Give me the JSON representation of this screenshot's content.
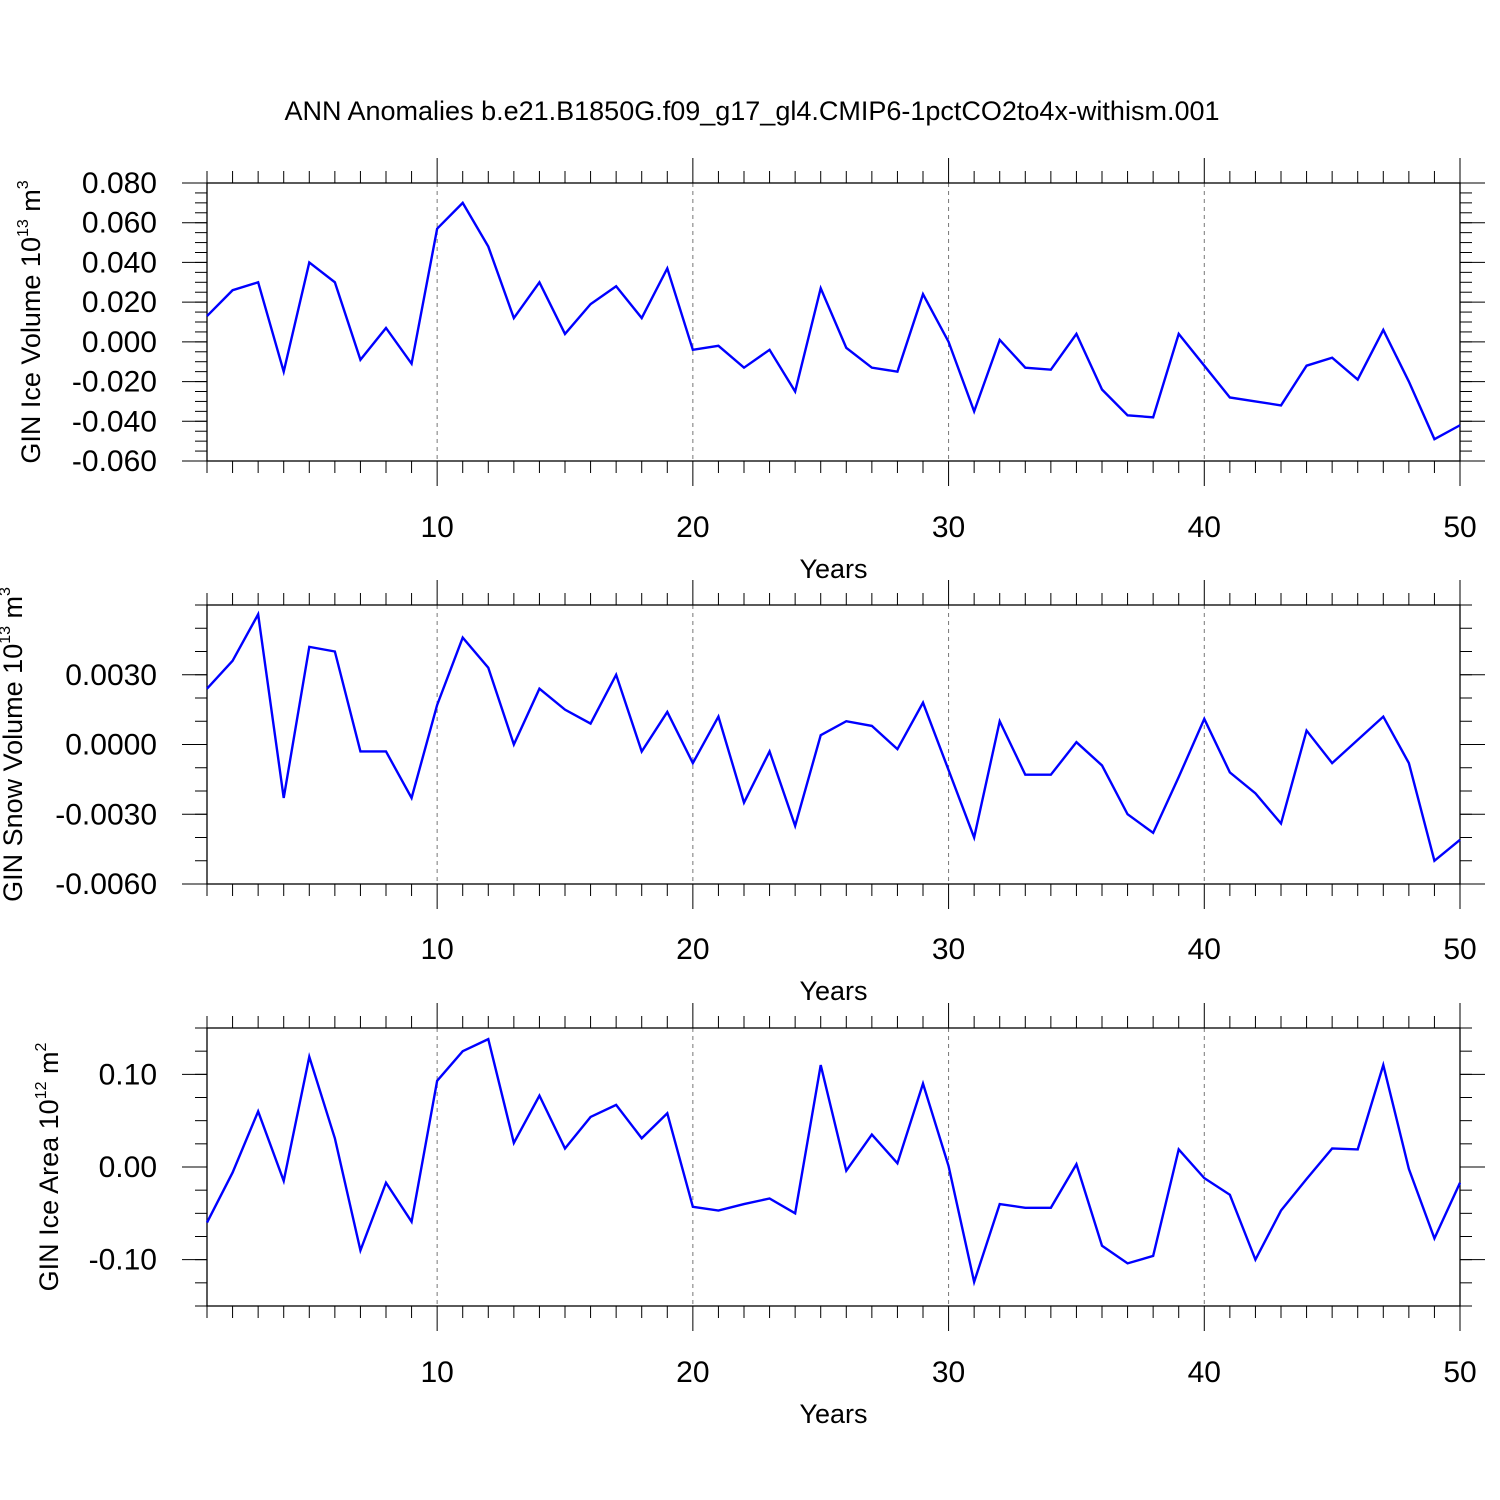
{
  "title": "ANN Anomalies b.e21.B1850G.f09_g17_gl4.CMIP6-1pctCO2to4x-withism.001",
  "colors": {
    "line": "#0000ff",
    "axis": "#000000",
    "gridline": "#777777"
  },
  "chart_data": [
    {
      "type": "line",
      "title": "",
      "xlabel": "Years",
      "ylabel": {
        "text": "GIN Ice Volume 10",
        "sup": "13",
        "unit": " m",
        "unit_sup": "3"
      },
      "xlim": [
        1,
        50
      ],
      "ylim": [
        -0.06,
        0.08
      ],
      "x_ticks": [
        10,
        20,
        30,
        40,
        50
      ],
      "y_ticks": [
        -0.06,
        -0.04,
        -0.02,
        0.0,
        0.02,
        0.04,
        0.06,
        0.08
      ],
      "y_tick_labels": [
        "-0.060",
        "-0.040",
        "-0.020",
        "0.000",
        "0.020",
        "0.040",
        "0.060",
        "0.080"
      ],
      "y_minor_step": 0.005,
      "grid": "dashed vertical at x ticks",
      "series": [
        {
          "x": [
            1,
            2,
            3,
            4,
            5,
            6,
            7,
            8,
            9,
            10,
            11,
            12,
            13,
            14,
            15,
            16,
            17,
            18,
            19,
            20,
            21,
            22,
            23,
            24,
            25,
            26,
            27,
            28,
            29,
            30,
            31,
            32,
            33,
            34,
            35,
            36,
            37,
            38,
            39,
            40,
            41,
            42,
            43,
            44,
            45,
            46,
            47,
            48,
            49,
            50
          ],
          "values": [
            0.013,
            0.026,
            0.03,
            -0.015,
            0.04,
            0.03,
            -0.009,
            0.007,
            -0.011,
            0.057,
            0.07,
            0.048,
            0.012,
            0.03,
            0.004,
            0.019,
            0.028,
            0.012,
            0.037,
            -0.004,
            -0.002,
            -0.013,
            -0.004,
            -0.025,
            0.027,
            -0.003,
            -0.013,
            -0.015,
            0.024,
            0.0,
            -0.035,
            0.001,
            -0.013,
            -0.014,
            0.004,
            -0.024,
            -0.037,
            -0.038,
            0.004,
            -0.012,
            -0.028,
            -0.03,
            -0.032,
            -0.012,
            -0.008,
            -0.019,
            0.006,
            -0.02,
            -0.049,
            -0.042
          ]
        }
      ]
    },
    {
      "type": "line",
      "title": "",
      "xlabel": "Years",
      "ylabel": {
        "text": "GIN Snow Volume 10",
        "sup": "13",
        "unit": " m",
        "unit_sup": "3"
      },
      "xlim": [
        1,
        50
      ],
      "ylim": [
        -0.006,
        0.006
      ],
      "x_ticks": [
        10,
        20,
        30,
        40,
        50
      ],
      "y_ticks": [
        -0.006,
        -0.003,
        0.0,
        0.003
      ],
      "y_tick_labels": [
        "-0.0060",
        "-0.0030",
        "0.0000",
        "0.0030"
      ],
      "y_minor_step": 0.001,
      "grid": "dashed vertical at x ticks",
      "series": [
        {
          "x": [
            1,
            2,
            3,
            4,
            5,
            6,
            7,
            8,
            9,
            10,
            11,
            12,
            13,
            14,
            15,
            16,
            17,
            18,
            19,
            20,
            21,
            22,
            23,
            24,
            25,
            26,
            27,
            28,
            29,
            30,
            31,
            32,
            33,
            34,
            35,
            36,
            37,
            38,
            39,
            40,
            41,
            42,
            43,
            44,
            45,
            46,
            47,
            48,
            49,
            50
          ],
          "values": [
            0.0024,
            0.0036,
            0.0056,
            -0.0023,
            0.0042,
            0.004,
            -0.0003,
            -0.0003,
            -0.0023,
            0.0017,
            0.0046,
            0.0033,
            0.0,
            0.0024,
            0.0015,
            0.0009,
            0.003,
            -0.0003,
            0.0014,
            -0.0008,
            0.0012,
            -0.0025,
            -0.0003,
            -0.0035,
            0.0004,
            0.001,
            0.0008,
            -0.0002,
            0.0018,
            -0.0011,
            -0.004,
            0.001,
            -0.0013,
            -0.0013,
            0.0001,
            -0.0009,
            -0.003,
            -0.0038,
            -0.0014,
            0.0011,
            -0.0012,
            -0.0021,
            -0.0034,
            0.0006,
            -0.0008,
            0.0002,
            0.0012,
            -0.0008,
            -0.005,
            -0.0041
          ]
        }
      ]
    },
    {
      "type": "line",
      "title": "",
      "xlabel": "Years",
      "ylabel": {
        "text": "GIN Ice Area 10",
        "sup": "12",
        "unit": " m",
        "unit_sup": "2"
      },
      "xlim": [
        1,
        50
      ],
      "ylim": [
        -0.15,
        0.15
      ],
      "x_ticks": [
        10,
        20,
        30,
        40,
        50
      ],
      "y_ticks": [
        -0.1,
        0.0,
        0.1
      ],
      "y_tick_labels": [
        "-0.10",
        "0.00",
        "0.10"
      ],
      "y_minor_step": 0.025,
      "grid": "dashed vertical at x ticks",
      "series": [
        {
          "x": [
            1,
            2,
            3,
            4,
            5,
            6,
            7,
            8,
            9,
            10,
            11,
            12,
            13,
            14,
            15,
            16,
            17,
            18,
            19,
            20,
            21,
            22,
            23,
            24,
            25,
            26,
            27,
            28,
            29,
            30,
            31,
            32,
            33,
            34,
            35,
            36,
            37,
            38,
            39,
            40,
            41,
            42,
            43,
            44,
            45,
            46,
            47,
            48,
            49,
            50
          ],
          "values": [
            -0.06,
            -0.006,
            0.06,
            -0.015,
            0.119,
            0.031,
            -0.09,
            -0.017,
            -0.059,
            0.093,
            0.125,
            0.138,
            0.026,
            0.077,
            0.02,
            0.054,
            0.067,
            0.031,
            0.058,
            -0.043,
            -0.047,
            -0.04,
            -0.034,
            -0.05,
            0.11,
            -0.004,
            0.035,
            0.004,
            0.09,
            0.001,
            -0.124,
            -0.04,
            -0.044,
            -0.044,
            0.003,
            -0.085,
            -0.104,
            -0.096,
            0.019,
            -0.012,
            -0.03,
            -0.1,
            -0.047,
            -0.013,
            0.02,
            0.019,
            0.11,
            -0.002,
            -0.077,
            -0.017
          ]
        }
      ]
    }
  ]
}
